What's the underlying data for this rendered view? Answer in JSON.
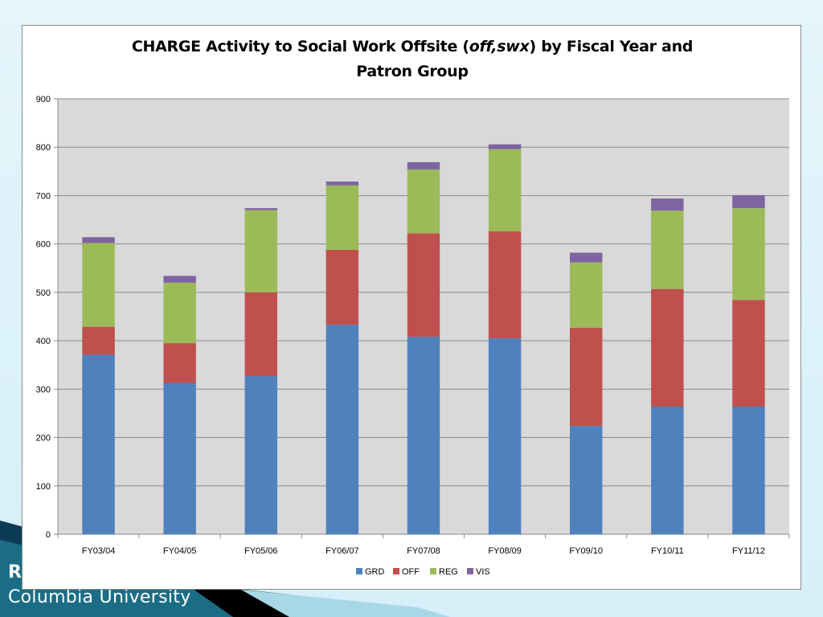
{
  "slide": {
    "footer_line1": "R",
    "footer_line2": "Columbia University"
  },
  "chart_data": {
    "type": "bar",
    "stacked": true,
    "title_parts": [
      {
        "text": "CHARGE Activity to Social Work Offsite (",
        "italic": false
      },
      {
        "text": "off,swx",
        "italic": true
      },
      {
        "text": ") by Fiscal Year and",
        "italic": false
      }
    ],
    "title_line2": "Patron Group",
    "categories": [
      "FY03/04",
      "FY04/05",
      "FY05/06",
      "FY06/07",
      "FY07/08",
      "FY08/09",
      "FY09/10",
      "FY10/11",
      "FY11/12"
    ],
    "series": [
      {
        "name": "GRD",
        "color": "#4f81bd",
        "values": [
          371,
          313,
          327,
          433,
          408,
          405,
          224,
          264,
          264
        ]
      },
      {
        "name": "OFF",
        "color": "#c0504d",
        "values": [
          58,
          82,
          173,
          155,
          214,
          221,
          203,
          243,
          220
        ]
      },
      {
        "name": "REG",
        "color": "#9bbb59",
        "values": [
          173,
          125,
          170,
          133,
          132,
          170,
          135,
          162,
          190
        ]
      },
      {
        "name": "VIS",
        "color": "#8064a2",
        "values": [
          12,
          14,
          4,
          8,
          15,
          10,
          20,
          25,
          27
        ]
      }
    ],
    "ylim": [
      0,
      900
    ],
    "yticks": [
      0,
      100,
      200,
      300,
      400,
      500,
      600,
      700,
      800,
      900
    ],
    "xlabel": "",
    "ylabel": "",
    "grid": true,
    "plot_background": "#d9d9d9",
    "legend_position": "bottom"
  }
}
